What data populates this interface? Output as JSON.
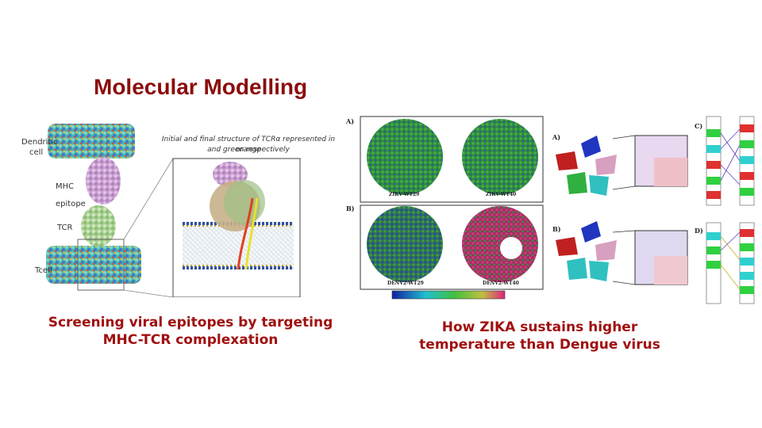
{
  "slide": {
    "title": "Molecular Modelling",
    "left_caption_line1": "Screening viral epitopes by targeting",
    "left_caption_line2": "MHC-TCR complexation",
    "right_caption_line1": "How ZIKA sustains higher",
    "right_caption_line2": "temperature than Dengue virus"
  },
  "left_figure": {
    "labels": {
      "dendritic": "Dendritic",
      "cell": "cell",
      "mhc": "MHC",
      "epitope": "epitope",
      "tcr": "TCR",
      "tcell": "Tcell"
    },
    "inset_caption_line1": "Initial and final structure of TCRα represented in orange",
    "inset_caption_line2": "and green respectively"
  },
  "right_figure": {
    "panels": {
      "a": "A)",
      "b": "B)",
      "a2": "A)",
      "b2": "B)",
      "c": "C)",
      "d": "D)"
    },
    "virus_labels": {
      "zikv_wt29": "ZIKV-WT29",
      "zikv_wt40": "ZIKV-WT40",
      "denv2_wt29": "DENV2-WT29",
      "denv2_wt40": "DENV2-WT40"
    }
  },
  "colors": {
    "title": "#8b0d0d",
    "caption": "#a01010"
  }
}
